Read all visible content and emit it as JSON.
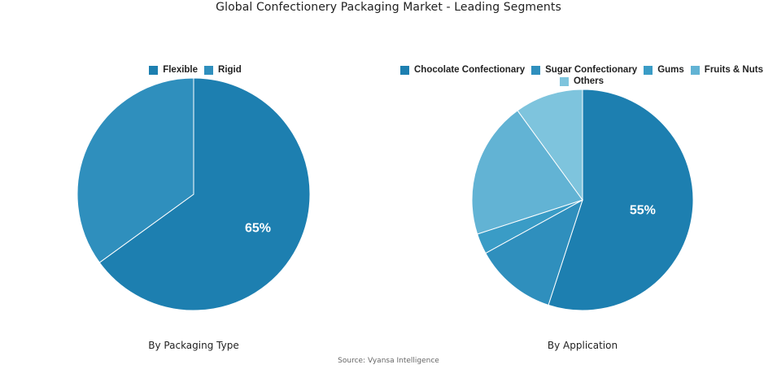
{
  "title": "Global Confectionery Packaging Market - Leading Segments",
  "source": "Source: Vyansa Intelligence",
  "chart_data": [
    {
      "type": "pie",
      "subtitle": "By Packaging Type",
      "categories": [
        "Flexible",
        "Rigid"
      ],
      "values": [
        65,
        35
      ],
      "colors": [
        "#1d7fb0",
        "#2f8fbd"
      ],
      "labels": [
        "65%",
        ""
      ],
      "legend": "top"
    },
    {
      "type": "pie",
      "subtitle": "By Application",
      "categories": [
        "Chocolate Confectionary",
        "Sugar Confectionary",
        "Gums",
        "Fruits & Nuts",
        "Others"
      ],
      "values": [
        55,
        12,
        3,
        20,
        10
      ],
      "colors": [
        "#1d7fb0",
        "#2f8fbd",
        "#3a9cc6",
        "#62b3d4",
        "#7ec4dd"
      ],
      "labels": [
        "55%",
        "",
        "",
        "",
        ""
      ],
      "legend": "top"
    }
  ]
}
